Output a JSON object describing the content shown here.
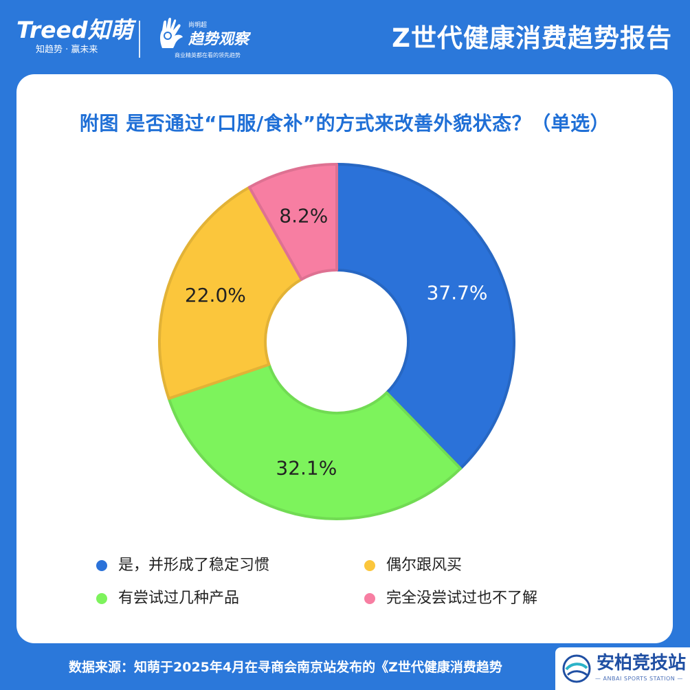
{
  "header": {
    "brand_logo": "Treed知萌",
    "brand_tagline": "知趋势 · 赢未来",
    "partner_sup": "尚明超",
    "partner_name": "趋势观察",
    "partner_sub": "商业精英都在看的领先趋势",
    "report_title": "Z世代健康消费趋势报告"
  },
  "chart_data": {
    "type": "pie",
    "donut": true,
    "title": "附图 是否通过“口服/食补”的方式来改善外貌状态？（单选）",
    "series": [
      {
        "name": "是，并形成了稳定习惯",
        "value": 37.7,
        "label": "37.7%",
        "color": "#2b72d9",
        "label_color": "#ffffff"
      },
      {
        "name": "有尝试过几种产品",
        "value": 32.1,
        "label": "32.1%",
        "color": "#7df35c",
        "label_color": "#222222"
      },
      {
        "name": "偶尔跟风买",
        "value": 22.0,
        "label": "22.0%",
        "color": "#fbc63c",
        "label_color": "#222222"
      },
      {
        "name": "完全没尝试过也不了解",
        "value": 8.2,
        "label": "8.2%",
        "color": "#f77ea2",
        "label_color": "#222222"
      }
    ],
    "legend_position": "bottom"
  },
  "legend": [
    {
      "name": "是，并形成了稳定习惯",
      "color": "#2b72d9"
    },
    {
      "name": "偶尔跟风买",
      "color": "#fbc63c"
    },
    {
      "name": "有尝试过几种产品",
      "color": "#7df35c"
    },
    {
      "name": "完全没尝试过也不了解",
      "color": "#f77ea2"
    }
  ],
  "footer": {
    "source": "数据来源：知萌于2025年4月在寻商会南京站发布的《Z世代健康消费趋势"
  },
  "watermark": {
    "name": "安柏竞技站",
    "sub": "— ANBAI SPORTS STATION —"
  }
}
